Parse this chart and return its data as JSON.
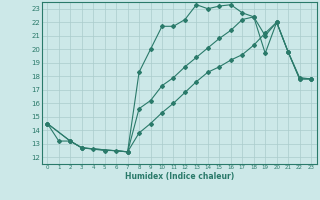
{
  "xlabel": "Humidex (Indice chaleur)",
  "xlim": [
    -0.5,
    23.5
  ],
  "ylim": [
    11.5,
    23.5
  ],
  "yticks": [
    12,
    13,
    14,
    15,
    16,
    17,
    18,
    19,
    20,
    21,
    22,
    23
  ],
  "xticks": [
    0,
    1,
    2,
    3,
    4,
    5,
    6,
    7,
    8,
    9,
    10,
    11,
    12,
    13,
    14,
    15,
    16,
    17,
    18,
    19,
    20,
    21,
    22,
    23
  ],
  "line_color": "#2a7a6a",
  "background_color": "#cce8e8",
  "grid_color": "#aacccc",
  "line1_x": [
    0,
    1,
    2,
    3,
    4,
    5,
    6,
    7,
    8,
    9,
    10,
    11,
    12,
    13,
    14,
    15,
    16,
    17,
    18,
    19,
    20,
    21,
    22,
    23
  ],
  "line1_y": [
    14.5,
    13.2,
    13.2,
    12.7,
    12.6,
    12.5,
    12.5,
    12.4,
    18.3,
    20.0,
    21.7,
    21.7,
    22.2,
    23.3,
    23.0,
    23.2,
    23.3,
    22.7,
    22.4,
    19.7,
    22.0,
    19.8,
    17.9,
    17.8
  ],
  "line2_x": [
    0,
    2,
    3,
    7,
    8,
    9,
    10,
    11,
    12,
    13,
    14,
    15,
    16,
    17,
    18,
    19,
    20,
    21,
    22,
    23
  ],
  "line2_y": [
    14.5,
    13.2,
    12.7,
    12.4,
    15.6,
    16.2,
    17.3,
    17.9,
    18.7,
    19.4,
    20.1,
    20.8,
    21.4,
    22.2,
    22.4,
    21.0,
    22.0,
    19.8,
    17.8,
    17.8
  ],
  "line3_x": [
    0,
    2,
    3,
    7,
    8,
    9,
    10,
    11,
    12,
    13,
    14,
    15,
    16,
    17,
    18,
    19,
    20,
    21,
    22,
    23
  ],
  "line3_y": [
    14.5,
    13.2,
    12.7,
    12.4,
    13.8,
    14.5,
    15.3,
    16.0,
    16.8,
    17.6,
    18.3,
    18.7,
    19.2,
    19.6,
    20.3,
    21.2,
    22.0,
    19.8,
    17.8,
    17.8
  ]
}
